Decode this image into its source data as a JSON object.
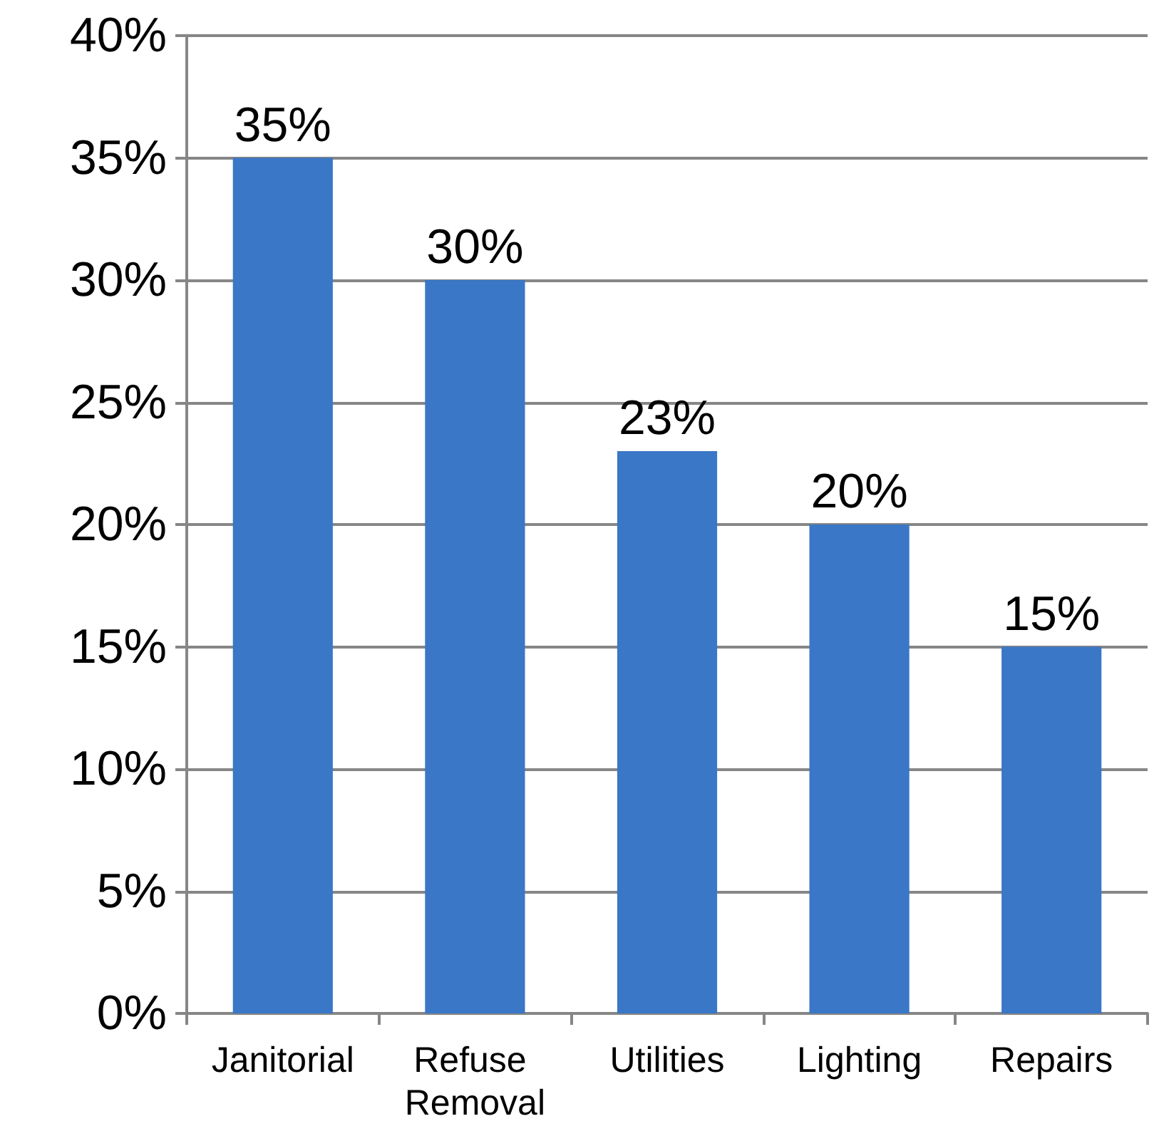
{
  "chart_data": {
    "type": "bar",
    "categories": [
      "Janitorial",
      "Refuse Removal",
      "Utilities",
      "Lighting",
      "Repairs"
    ],
    "values": [
      35,
      30,
      23,
      20,
      15
    ],
    "value_labels": [
      "35%",
      "30%",
      "23%",
      "20%",
      "15%"
    ],
    "color": "#3a77c6",
    "ylim": [
      0,
      40
    ],
    "yticks": [
      {
        "value": 0,
        "label": "0%"
      },
      {
        "value": 5,
        "label": "5%"
      },
      {
        "value": 10,
        "label": "10%"
      },
      {
        "value": 15,
        "label": "15%"
      },
      {
        "value": 20,
        "label": "20%"
      },
      {
        "value": 25,
        "label": "25%"
      },
      {
        "value": 30,
        "label": "30%"
      },
      {
        "value": 35,
        "label": "35%"
      },
      {
        "value": 40,
        "label": "40%"
      }
    ],
    "grid": true
  }
}
